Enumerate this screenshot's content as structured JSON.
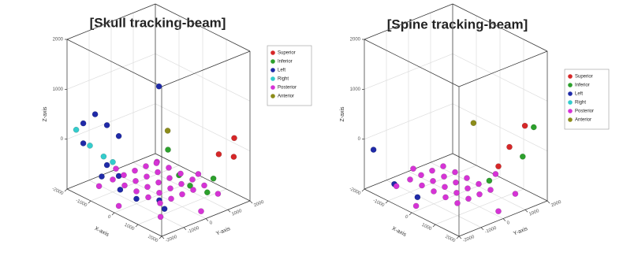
{
  "chart_data": [
    {
      "type": "scatter3d",
      "title": "[Skull tracking-beam]",
      "xlabel": "X-axis",
      "ylabel": "Y-axis",
      "zlabel": "Z-axis",
      "xlim": [
        -2000,
        2000
      ],
      "ylim": [
        -2000,
        2000
      ],
      "zlim": [
        -1000,
        2000
      ],
      "xticks": [
        -2000,
        -1000,
        0,
        1000,
        2000
      ],
      "yticks": [
        -2000,
        -1000,
        0,
        1000,
        2000
      ],
      "zticks": [
        0,
        1000,
        2000
      ],
      "grid": true,
      "legend": "upper right",
      "series": [
        {
          "name": "Superior",
          "color": "#d62728",
          "x": [
            1800,
            1800,
            1500
          ],
          "y": [
            1500,
            800,
            1800
          ],
          "z": [
            300,
            100,
            -200
          ]
        },
        {
          "name": "Inferior",
          "color": "#2ca02c",
          "x": [
            1800,
            1800,
            1800,
            1200,
            1500
          ],
          "y": [
            -1500,
            -1000,
            -500,
            1200,
            600
          ],
          "z": [
            600,
            0,
            -300,
            -600,
            -700
          ]
        },
        {
          "name": "Left",
          "color": "#1f2aa8",
          "x": [
            -1500,
            -1000,
            -500,
            0,
            -1500,
            -500,
            0,
            -1000,
            -500,
            0,
            500,
            1000,
            300
          ],
          "y": [
            -1800,
            -1800,
            -1800,
            -1800,
            -1800,
            -1800,
            -1800,
            -1500,
            -1200,
            -1000,
            -500,
            -800,
            -300
          ],
          "z": [
            400,
            700,
            600,
            500,
            0,
            -200,
            -300,
            -600,
            -800,
            -900,
            -900,
            -900,
            1300
          ]
        },
        {
          "name": "Right",
          "color": "#33cccc",
          "x": [
            -1800,
            -1500,
            -1200,
            -1000
          ],
          "y": [
            -1800,
            -1500,
            -1200,
            -1000
          ],
          "z": [
            200,
            -100,
            -300,
            -400
          ]
        },
        {
          "name": "Posterior",
          "color": "#d633d6",
          "x": [
            -1000,
            -500,
            0,
            500,
            1000,
            -1000,
            -500,
            0,
            500,
            1000,
            -1000,
            -500,
            0,
            500,
            1000,
            -1000,
            -500,
            0,
            500,
            1000,
            -1000,
            -500,
            0,
            500,
            1000,
            -1800,
            1800,
            0,
            0,
            -1300,
            1300,
            -1300,
            1300
          ],
          "y": [
            -1000,
            -1000,
            -1000,
            -1000,
            -1000,
            -500,
            -500,
            -500,
            -500,
            -500,
            0,
            0,
            0,
            0,
            0,
            500,
            500,
            500,
            500,
            500,
            1000,
            1000,
            1000,
            1000,
            1000,
            0,
            0,
            -1800,
            1800,
            -1300,
            1300,
            1300,
            -1300
          ],
          "z": [
            -750,
            -750,
            -750,
            -750,
            -750,
            -750,
            -750,
            -750,
            -750,
            -750,
            -750,
            -750,
            -750,
            -750,
            -750,
            -750,
            -750,
            -750,
            -750,
            -750,
            -750,
            -750,
            -750,
            -750,
            -750,
            -900,
            -900,
            -900,
            -900,
            -900,
            -900,
            -900,
            -900
          ]
        },
        {
          "name": "Anterior",
          "color": "#8c8c1a",
          "x": [
            200
          ],
          "y": [
            200
          ],
          "z": [
            300
          ]
        }
      ]
    },
    {
      "type": "scatter3d",
      "title": "[Spine tracking-beam]",
      "xlabel": "X-axis",
      "ylabel": "Y-axis",
      "zlabel": "Z-axis",
      "xlim": [
        -2000,
        2000
      ],
      "ylim": [
        -2000,
        2000
      ],
      "zlim": [
        -1000,
        2000
      ],
      "xticks": [
        -2000,
        -1000,
        0,
        1000,
        2000
      ],
      "yticks": [
        -2000,
        -1000,
        0,
        1000,
        2000
      ],
      "zticks": [
        0,
        1000,
        2000
      ],
      "grid": true,
      "legend": "upper right",
      "series": [
        {
          "name": "Superior",
          "color": "#d62728",
          "x": [
            1800,
            1800,
            1800
          ],
          "y": [
            1200,
            500,
            0
          ],
          "z": [
            600,
            300,
            0
          ]
        },
        {
          "name": "Inferior",
          "color": "#2ca02c",
          "x": [
            1800,
            1800,
            1600
          ],
          "y": [
            1600,
            1100,
            -200
          ],
          "z": [
            500,
            0,
            -300
          ]
        },
        {
          "name": "Left",
          "color": "#1f2aa8",
          "x": [
            -1800,
            -1200,
            -500
          ],
          "y": [
            -1800,
            -1500,
            -1200
          ],
          "z": [
            -200,
            -800,
            -950
          ]
        },
        {
          "name": "Right",
          "color": "#33cccc",
          "x": [],
          "y": [],
          "z": []
        },
        {
          "name": "Posterior",
          "color": "#d633d6",
          "x": [
            -1000,
            -500,
            0,
            500,
            1000,
            -1000,
            -500,
            0,
            500,
            1000,
            -1000,
            -500,
            0,
            500,
            1000,
            -1000,
            -500,
            0,
            500,
            1000,
            -1800,
            1800,
            0,
            0,
            -1300,
            1300
          ],
          "y": [
            -1000,
            -1000,
            -1000,
            -1000,
            -1000,
            -500,
            -500,
            -500,
            -500,
            -500,
            0,
            0,
            0,
            0,
            0,
            500,
            500,
            500,
            500,
            500,
            0,
            0,
            -1800,
            1800,
            -1300,
            1300
          ],
          "z": [
            -750,
            -750,
            -750,
            -750,
            -750,
            -750,
            -750,
            -750,
            -750,
            -750,
            -750,
            -750,
            -750,
            -750,
            -750,
            -750,
            -750,
            -750,
            -750,
            -750,
            -900,
            -900,
            -900,
            -900,
            -900,
            -900
          ]
        },
        {
          "name": "Anterior",
          "color": "#8c8c1a",
          "x": [
            0
          ],
          "y": [
            800
          ],
          "z": [
            300
          ]
        }
      ]
    }
  ]
}
